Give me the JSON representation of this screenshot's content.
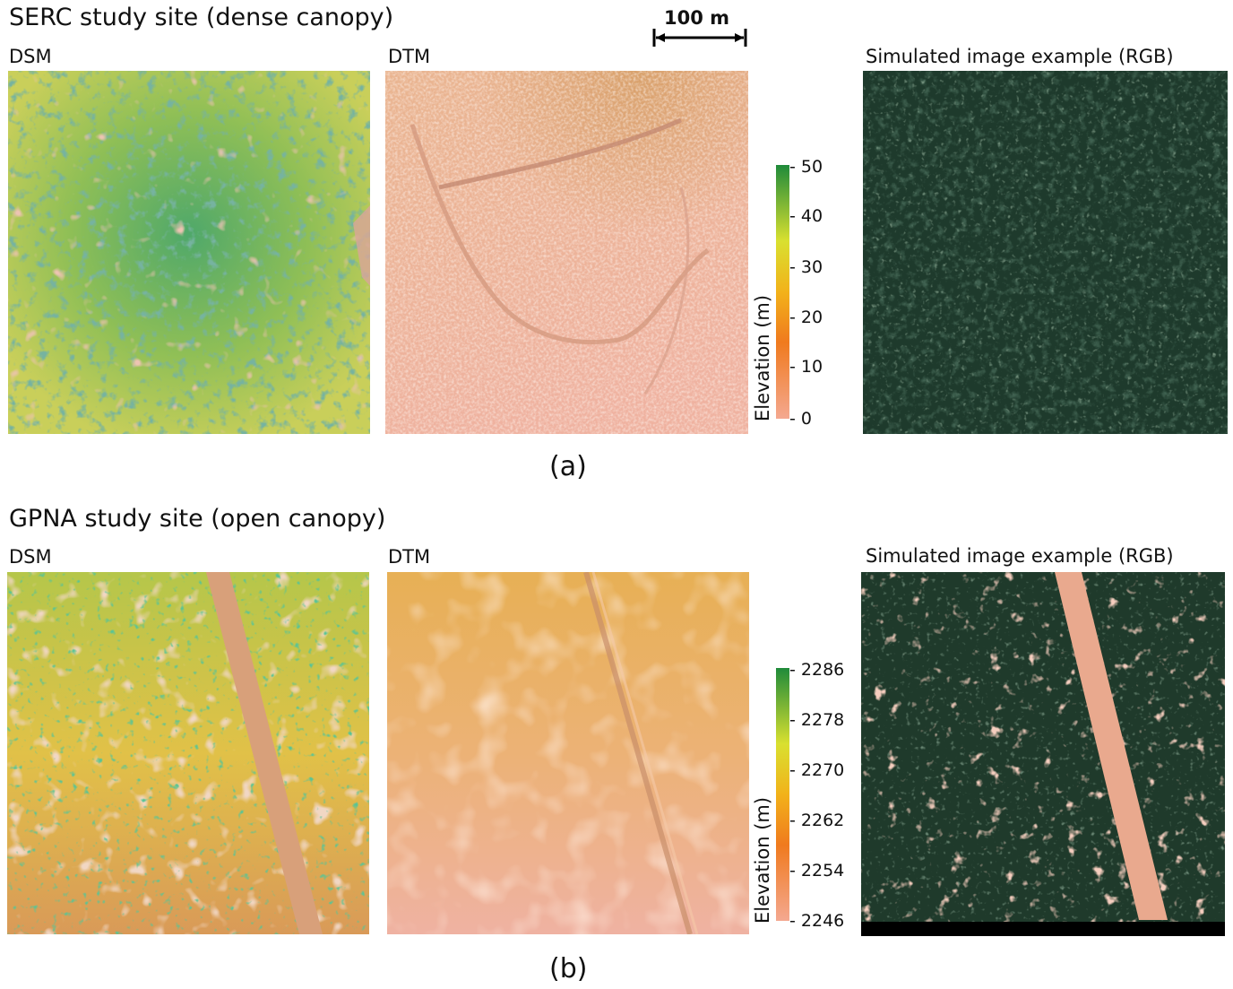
{
  "scale_bar": {
    "label": "100 m"
  },
  "panel_a": {
    "title": "SERC study site (dense canopy)",
    "dsm_label": "DSM",
    "dtm_label": "DTM",
    "rgb_label": "Simulated image example (RGB)",
    "colorbar": {
      "axis_label": "Elevation (m)",
      "ticks": [
        "50",
        "40",
        "30",
        "20",
        "10",
        "0"
      ],
      "range": [
        0,
        50
      ],
      "colors": [
        "#1f8a3a",
        "#d9e030",
        "#f2b21a",
        "#f07a1e",
        "#f4a890"
      ]
    },
    "caption": "(a)"
  },
  "panel_b": {
    "title": "GPNA study site (open canopy)",
    "dsm_label": "DSM",
    "dtm_label": "DTM",
    "rgb_label": "Simulated image example (RGB)",
    "colorbar": {
      "axis_label": "Elevation (m)",
      "ticks": [
        "2286",
        "2278",
        "2270",
        "2262",
        "2254",
        "2246"
      ],
      "range": [
        2246,
        2286
      ],
      "colors": [
        "#1f8a3a",
        "#d9e030",
        "#f2b21a",
        "#f07a1e",
        "#f4a890"
      ]
    },
    "caption": "(b)"
  }
}
